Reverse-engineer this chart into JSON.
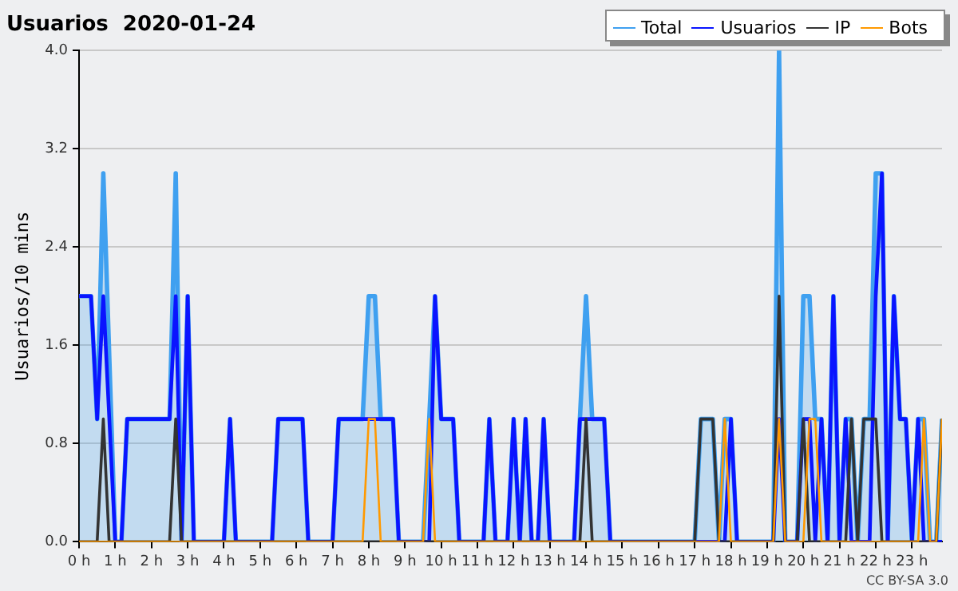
{
  "chart_data": {
    "type": "line",
    "title": "Usuarios  2020-01-24",
    "ylabel": "Usuarios/10 mins",
    "annotations": [
      "CC BY-SA 3.0"
    ],
    "xlim": [
      0,
      23.83
    ],
    "xticks": [
      {
        "value": 0,
        "label": "0 h"
      },
      {
        "value": 1,
        "label": "1 h"
      },
      {
        "value": 2,
        "label": "2 h"
      },
      {
        "value": 3,
        "label": "3 h"
      },
      {
        "value": 4,
        "label": "4 h"
      },
      {
        "value": 5,
        "label": "5 h"
      },
      {
        "value": 6,
        "label": "6 h"
      },
      {
        "value": 7,
        "label": "7 h"
      },
      {
        "value": 8,
        "label": "8 h"
      },
      {
        "value": 9,
        "label": "9 h"
      },
      {
        "value": 10,
        "label": "10 h"
      },
      {
        "value": 11,
        "label": "11 h"
      },
      {
        "value": 12,
        "label": "12 h"
      },
      {
        "value": 13,
        "label": "13 h"
      },
      {
        "value": 14,
        "label": "14 h"
      },
      {
        "value": 15,
        "label": "15 h"
      },
      {
        "value": 16,
        "label": "16 h"
      },
      {
        "value": 17,
        "label": "17 h"
      },
      {
        "value": 18,
        "label": "18 h"
      },
      {
        "value": 19,
        "label": "19 h"
      },
      {
        "value": 20,
        "label": "20 h"
      },
      {
        "value": 21,
        "label": "21 h"
      },
      {
        "value": 22,
        "label": "22 h"
      },
      {
        "value": 23,
        "label": "23 h"
      }
    ],
    "ylim": [
      0,
      4
    ],
    "yticks": [
      {
        "value": 0,
        "label": "0.0"
      },
      0.8,
      1.6,
      2.4,
      3.2,
      {
        "value": 4,
        "label": "4.0"
      }
    ],
    "grid": "y",
    "legend": "top right",
    "marker": "none",
    "line_style": "solid",
    "series": [
      {
        "name": "Total",
        "type": "area",
        "color": "#3fa0f0",
        "x": [
          0,
          0.33,
          0.5,
          0.67,
          1,
          1.17,
          1.33,
          2.5,
          2.67,
          2.83,
          3,
          3.17,
          4,
          4.17,
          4.33,
          5.33,
          5.5,
          6.17,
          6.33,
          7,
          7.17,
          7.83,
          8,
          8.17,
          8.33,
          8.67,
          8.83,
          9.5,
          9.67,
          9.83,
          10,
          10.33,
          10.5,
          11.17,
          11.33,
          11.5,
          11.83,
          12,
          12.17,
          12.33,
          12.5,
          12.67,
          12.83,
          13,
          13.67,
          13.83,
          14,
          14.17,
          14.5,
          14.67,
          17,
          17.17,
          17.5,
          17.67,
          17.83,
          18,
          18.17,
          19.17,
          19.33,
          19.5,
          19.83,
          20,
          20.17,
          20.33,
          20.5,
          20.67,
          20.83,
          21,
          21.17,
          21.33,
          21.5,
          21.67,
          21.83,
          22,
          22.17,
          22.33,
          22.5,
          22.67,
          22.83,
          23,
          23.17,
          23.33,
          23.5,
          23.67,
          23.83
        ],
        "values": [
          2,
          2,
          1,
          3,
          0,
          0,
          1,
          1,
          3,
          0,
          2,
          0,
          0,
          1,
          0,
          0,
          1,
          1,
          0,
          0,
          1,
          1,
          2,
          2,
          1,
          1,
          0,
          0,
          1,
          2,
          1,
          1,
          0,
          0,
          1,
          0,
          0,
          1,
          0,
          1,
          0,
          0,
          1,
          0,
          0,
          1,
          2,
          1,
          1,
          0,
          0,
          1,
          1,
          0,
          1,
          1,
          0,
          0,
          4,
          0,
          0,
          2,
          2,
          1,
          1,
          0,
          2,
          0,
          1,
          1,
          0,
          1,
          1,
          3,
          3,
          0,
          2,
          1,
          1,
          0,
          1,
          1,
          0,
          0,
          1
        ]
      },
      {
        "name": "Usuarios",
        "color": "#0a14ff",
        "x": [
          0,
          0.33,
          0.5,
          0.67,
          1,
          1.17,
          1.33,
          2.5,
          2.67,
          2.83,
          3,
          3.17,
          4,
          4.17,
          4.33,
          5.33,
          5.5,
          6.17,
          6.33,
          7,
          7.17,
          8.67,
          8.83,
          9.67,
          9.83,
          10,
          10.33,
          10.5,
          11.17,
          11.33,
          11.5,
          11.83,
          12,
          12.17,
          12.33,
          12.5,
          12.67,
          12.83,
          13,
          13.67,
          13.83,
          14.5,
          14.67,
          17.83,
          18,
          18.17,
          19.17,
          19.33,
          19.5,
          19.83,
          20,
          20.17,
          20.33,
          20.5,
          20.67,
          20.83,
          21,
          21.17,
          21.33,
          21.83,
          22,
          22.17,
          22.33,
          22.5,
          22.67,
          22.83,
          23,
          23.17,
          23.33,
          23.83
        ],
        "values": [
          2,
          2,
          1,
          2,
          0,
          0,
          1,
          1,
          2,
          0,
          2,
          0,
          0,
          1,
          0,
          0,
          1,
          1,
          0,
          0,
          1,
          1,
          0,
          0,
          2,
          1,
          1,
          0,
          0,
          1,
          0,
          0,
          1,
          0,
          1,
          0,
          0,
          1,
          0,
          0,
          1,
          1,
          0,
          0,
          1,
          0,
          0,
          1,
          0,
          0,
          1,
          1,
          0,
          1,
          0,
          2,
          0,
          1,
          0,
          0,
          2,
          3,
          0,
          2,
          1,
          1,
          0,
          1,
          0,
          0
        ]
      },
      {
        "name": "IP",
        "color": "#333333",
        "x": [
          0,
          0.5,
          0.67,
          0.83,
          2.5,
          2.67,
          2.83,
          13.83,
          14,
          14.17,
          17,
          17.17,
          17.5,
          17.67,
          19.17,
          19.33,
          19.5,
          19.83,
          20,
          20.17,
          21.17,
          21.33,
          21.5,
          21.67,
          22,
          22.17,
          23.67,
          23.83
        ],
        "values": [
          0,
          0,
          1,
          0,
          0,
          1,
          0,
          0,
          1,
          0,
          0,
          1,
          1,
          0,
          0,
          2,
          0,
          0,
          1,
          0,
          0,
          1,
          0,
          1,
          1,
          0,
          0,
          1
        ]
      },
      {
        "name": "Bots",
        "color": "#ff9900",
        "x": [
          0,
          7.83,
          8,
          8.17,
          8.33,
          9.5,
          9.67,
          9.83,
          17.67,
          17.83,
          18,
          19.17,
          19.33,
          19.5,
          20,
          20.17,
          20.33,
          20.5,
          23.17,
          23.33,
          23.5,
          23.67,
          23.83
        ],
        "values": [
          0,
          0,
          1,
          1,
          0,
          0,
          1,
          0,
          0,
          1,
          0,
          0,
          1,
          0,
          0,
          1,
          1,
          0,
          0,
          1,
          0,
          0,
          1
        ]
      }
    ]
  }
}
